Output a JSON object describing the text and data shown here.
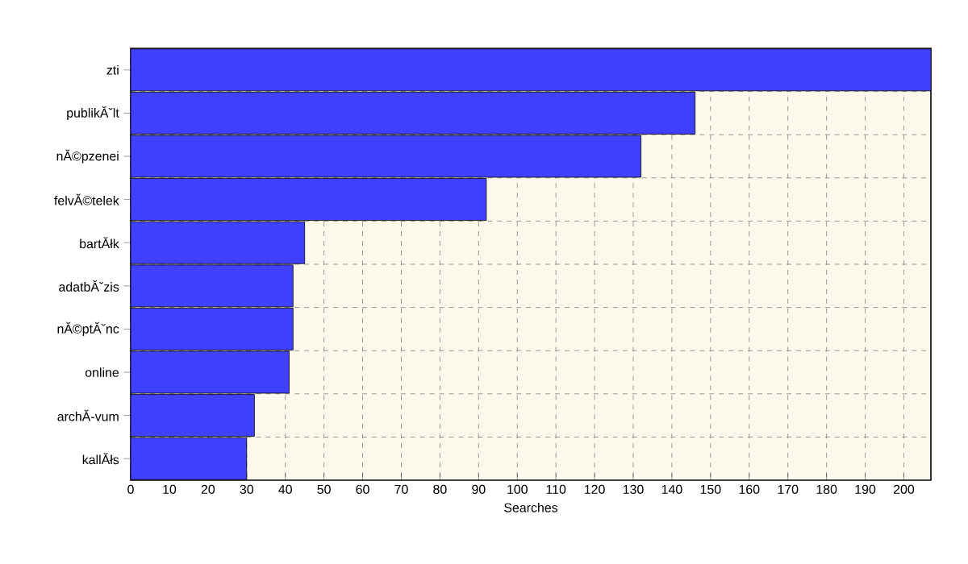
{
  "chart_data": {
    "type": "bar",
    "orientation": "horizontal",
    "xlabel": "Searches",
    "categories": [
      "zti",
      "publikĂˇlt",
      "nĂ©pzenei",
      "felvĂ©telek",
      "bartĂłk",
      "adatbĂˇzis",
      "nĂ©ptĂˇnc",
      "online",
      "archĂ-vum",
      "kallĂłs"
    ],
    "values": [
      207,
      146,
      132,
      92,
      45,
      42,
      42,
      41,
      32,
      30
    ],
    "color": "#4040ff",
    "xlim": [
      0,
      207
    ],
    "xticks": [
      0,
      10,
      20,
      30,
      40,
      50,
      60,
      70,
      80,
      90,
      100,
      110,
      120,
      130,
      140,
      150,
      160,
      170,
      180,
      190,
      200
    ],
    "grid": true
  }
}
